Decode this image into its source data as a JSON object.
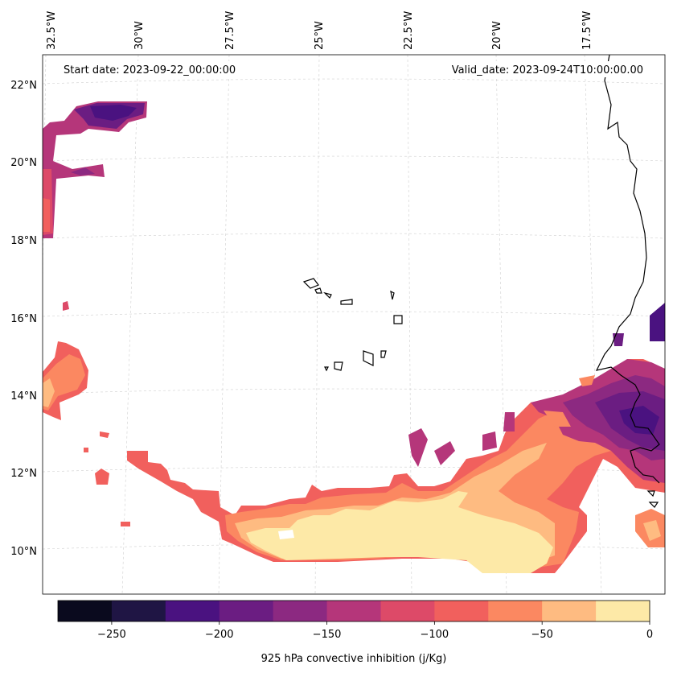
{
  "start_date_text": "Start date: 2023-09-22_00:00:00",
  "valid_date_text": "Valid_date: 2023-09-24T10:00:00.00",
  "lon_labels": [
    "32.5°W",
    "30°W",
    "27.5°W",
    "25°W",
    "22.5°W",
    "20°W",
    "17.5°W"
  ],
  "lat_labels": [
    "22°N",
    "20°N",
    "18°N",
    "16°N",
    "14°N",
    "12°N",
    "10°N"
  ],
  "colorbar": {
    "label": "925 hPa convective inhibition (j/Kg)",
    "tick_labels": [
      "−250",
      "−200",
      "−150",
      "−100",
      "−50",
      "0"
    ],
    "levels": [
      -275,
      -250,
      -225,
      -200,
      -175,
      -150,
      -125,
      -100,
      -75,
      -50,
      -25,
      0
    ],
    "colors": [
      "#0a0a1e",
      "#1f1544",
      "#4a1280",
      "#6b1d82",
      "#8c2981",
      "#b5367a",
      "#dd4a68",
      "#f1605d",
      "#fb8861",
      "#febb81",
      "#fde9a7"
    ]
  }
}
